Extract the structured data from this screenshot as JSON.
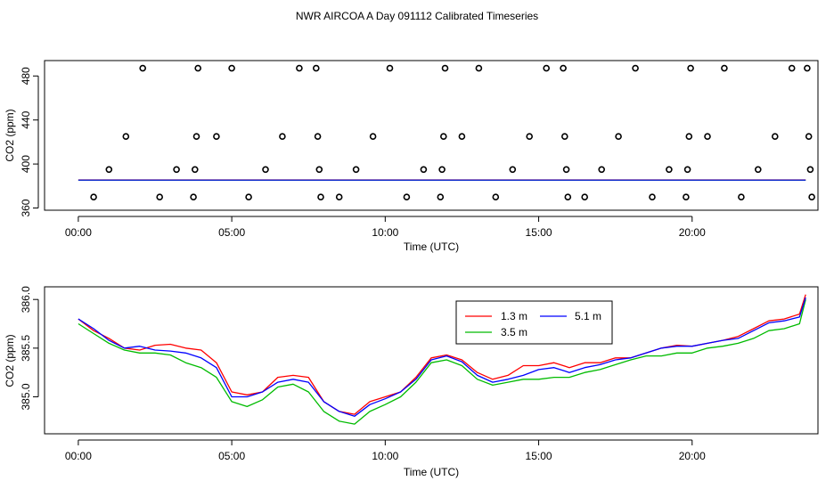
{
  "figure": {
    "title": "NWR AIRCOA A  Day 091112  Calibrated Timeseries"
  },
  "chart_data": [
    {
      "type": "scatter",
      "title": "",
      "xlabel": "Time (UTC)",
      "ylabel": "CO2 (ppm)",
      "xlim": [
        -1.1,
        24.1
      ],
      "ylim": [
        358,
        494
      ],
      "x_ticks": [
        0,
        5,
        10,
        15,
        20
      ],
      "x_tick_labels": [
        "00:00",
        "05:00",
        "10:00",
        "15:00",
        "20:00"
      ],
      "y_ticks": [
        360,
        400,
        440,
        480
      ],
      "y_tick_labels": [
        "360",
        "400",
        "440",
        "480"
      ],
      "grid": false,
      "colors": {
        "points": "#000000",
        "series_1": "#ff0000",
        "series_2": "#00bb00",
        "series_3": "#0000ff"
      },
      "points": [
        {
          "x": 0.5,
          "y": 370
        },
        {
          "x": 1.0,
          "y": 395
        },
        {
          "x": 1.55,
          "y": 425
        },
        {
          "x": 2.1,
          "y": 487
        },
        {
          "x": 2.65,
          "y": 370
        },
        {
          "x": 3.2,
          "y": 395
        },
        {
          "x": 3.75,
          "y": 370
        },
        {
          "x": 3.8,
          "y": 395
        },
        {
          "x": 3.85,
          "y": 425
        },
        {
          "x": 3.9,
          "y": 487
        },
        {
          "x": 4.5,
          "y": 425
        },
        {
          "x": 5.0,
          "y": 487
        },
        {
          "x": 5.55,
          "y": 370
        },
        {
          "x": 6.1,
          "y": 395
        },
        {
          "x": 6.65,
          "y": 425
        },
        {
          "x": 7.2,
          "y": 487
        },
        {
          "x": 7.75,
          "y": 487
        },
        {
          "x": 7.8,
          "y": 425
        },
        {
          "x": 7.85,
          "y": 395
        },
        {
          "x": 7.9,
          "y": 370
        },
        {
          "x": 8.5,
          "y": 370
        },
        {
          "x": 9.05,
          "y": 395
        },
        {
          "x": 9.6,
          "y": 425
        },
        {
          "x": 10.15,
          "y": 487
        },
        {
          "x": 10.7,
          "y": 370
        },
        {
          "x": 11.25,
          "y": 395
        },
        {
          "x": 11.8,
          "y": 370
        },
        {
          "x": 11.85,
          "y": 395
        },
        {
          "x": 11.9,
          "y": 425
        },
        {
          "x": 11.95,
          "y": 487
        },
        {
          "x": 12.5,
          "y": 425
        },
        {
          "x": 13.05,
          "y": 487
        },
        {
          "x": 13.6,
          "y": 370
        },
        {
          "x": 14.15,
          "y": 395
        },
        {
          "x": 14.7,
          "y": 425
        },
        {
          "x": 15.25,
          "y": 487
        },
        {
          "x": 15.8,
          "y": 487
        },
        {
          "x": 15.85,
          "y": 425
        },
        {
          "x": 15.9,
          "y": 395
        },
        {
          "x": 15.95,
          "y": 370
        },
        {
          "x": 16.5,
          "y": 370
        },
        {
          "x": 17.05,
          "y": 395
        },
        {
          "x": 17.6,
          "y": 425
        },
        {
          "x": 18.15,
          "y": 487
        },
        {
          "x": 18.7,
          "y": 370
        },
        {
          "x": 19.25,
          "y": 395
        },
        {
          "x": 19.8,
          "y": 370
        },
        {
          "x": 19.85,
          "y": 395
        },
        {
          "x": 19.9,
          "y": 425
        },
        {
          "x": 19.95,
          "y": 487
        },
        {
          "x": 20.5,
          "y": 425
        },
        {
          "x": 21.05,
          "y": 487
        },
        {
          "x": 21.6,
          "y": 370
        },
        {
          "x": 22.15,
          "y": 395
        },
        {
          "x": 22.7,
          "y": 425
        },
        {
          "x": 23.25,
          "y": 487
        },
        {
          "x": 23.75,
          "y": 487
        },
        {
          "x": 23.8,
          "y": 425
        },
        {
          "x": 23.85,
          "y": 395
        },
        {
          "x": 23.9,
          "y": 370
        }
      ],
      "baseline_series": [
        {
          "color": "#ff0000",
          "x": [
            0,
            23.7
          ],
          "y": [
            385.5,
            385.5
          ]
        },
        {
          "color": "#00bb00",
          "x": [
            0,
            23.7
          ],
          "y": [
            385.3,
            385.3
          ]
        },
        {
          "color": "#0000ff",
          "x": [
            0,
            23.7
          ],
          "y": [
            385.4,
            385.4
          ]
        }
      ]
    },
    {
      "type": "line",
      "title": "",
      "xlabel": "Time (UTC)",
      "ylabel": "CO2 (ppm)",
      "xlim": [
        -1.1,
        24.1
      ],
      "ylim": [
        384.62,
        386.13
      ],
      "x_ticks": [
        0,
        5,
        10,
        15,
        20
      ],
      "x_tick_labels": [
        "00:00",
        "05:00",
        "10:00",
        "15:00",
        "20:00"
      ],
      "y_ticks": [
        385.0,
        385.5,
        386.0
      ],
      "y_tick_labels": [
        "385.0",
        "385.5",
        "386.0"
      ],
      "grid": false,
      "legend": {
        "placement": "top-center",
        "entries": [
          "1.3 m",
          "5.1 m",
          "3.5 m"
        ]
      },
      "x": [
        0.0,
        0.5,
        1.0,
        1.5,
        2.0,
        2.5,
        3.0,
        3.5,
        4.0,
        4.5,
        5.0,
        5.5,
        6.0,
        6.5,
        7.0,
        7.5,
        8.0,
        8.5,
        9.0,
        9.5,
        10.0,
        10.5,
        11.0,
        11.5,
        12.0,
        12.5,
        13.0,
        13.5,
        14.0,
        14.5,
        15.0,
        15.5,
        16.0,
        16.5,
        17.0,
        17.5,
        18.0,
        18.5,
        19.0,
        19.5,
        20.0,
        20.5,
        21.0,
        21.5,
        22.0,
        22.5,
        23.0,
        23.5,
        23.7
      ],
      "series": [
        {
          "name": "1.3 m",
          "color": "#ff0000",
          "values": [
            385.8,
            385.68,
            385.6,
            385.5,
            385.48,
            385.53,
            385.54,
            385.5,
            385.48,
            385.35,
            385.05,
            385.02,
            385.05,
            385.2,
            385.22,
            385.2,
            384.95,
            384.85,
            384.82,
            384.95,
            385.0,
            385.05,
            385.2,
            385.4,
            385.43,
            385.38,
            385.25,
            385.18,
            385.22,
            385.32,
            385.32,
            385.35,
            385.3,
            385.35,
            385.35,
            385.4,
            385.4,
            385.45,
            385.5,
            385.53,
            385.52,
            385.55,
            385.58,
            385.62,
            385.7,
            385.78,
            385.8,
            385.85,
            386.05
          ]
        },
        {
          "name": "5.1 m",
          "color": "#0000ff",
          "values": [
            385.8,
            385.7,
            385.58,
            385.5,
            385.52,
            385.48,
            385.47,
            385.45,
            385.4,
            385.3,
            385.0,
            385.0,
            385.05,
            385.15,
            385.18,
            385.15,
            384.95,
            384.85,
            384.8,
            384.92,
            384.98,
            385.05,
            385.18,
            385.38,
            385.42,
            385.36,
            385.22,
            385.15,
            385.18,
            385.22,
            385.28,
            385.3,
            385.25,
            385.3,
            385.33,
            385.38,
            385.4,
            385.45,
            385.5,
            385.52,
            385.52,
            385.55,
            385.58,
            385.6,
            385.68,
            385.76,
            385.78,
            385.82,
            386.02
          ]
        },
        {
          "name": "3.5 m",
          "color": "#00bb00",
          "values": [
            385.75,
            385.65,
            385.55,
            385.48,
            385.45,
            385.45,
            385.43,
            385.35,
            385.3,
            385.2,
            384.95,
            384.9,
            384.97,
            385.1,
            385.13,
            385.05,
            384.85,
            384.75,
            384.72,
            384.85,
            384.92,
            385.0,
            385.15,
            385.35,
            385.38,
            385.32,
            385.18,
            385.12,
            385.15,
            385.18,
            385.18,
            385.2,
            385.2,
            385.25,
            385.28,
            385.33,
            385.38,
            385.42,
            385.42,
            385.45,
            385.45,
            385.5,
            385.52,
            385.55,
            385.6,
            385.68,
            385.7,
            385.75,
            386.0
          ]
        }
      ]
    }
  ]
}
